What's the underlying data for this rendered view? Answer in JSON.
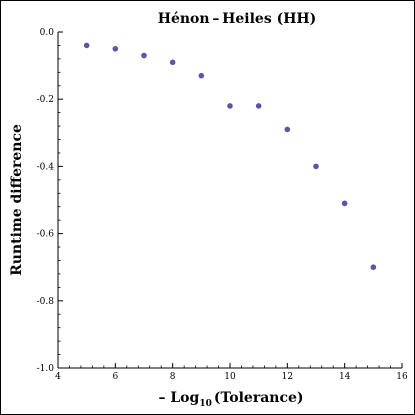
{
  "chart_data": {
    "type": "scatter",
    "title": "Hénon – Heiles (HH)",
    "xlabel_parts": {
      "prefix": "– Log",
      "subscript": "10",
      "suffix": "(Tolerance)"
    },
    "ylabel": "Runtime difference",
    "xlim": [
      4,
      16
    ],
    "ylim": [
      -1.0,
      0.0
    ],
    "x_ticks": [
      4,
      6,
      8,
      10,
      12,
      14,
      16
    ],
    "x_tick_labels": [
      "4",
      "6",
      "8",
      "10",
      "12",
      "14",
      "16"
    ],
    "y_ticks": [
      0.0,
      -0.2,
      -0.4,
      -0.6,
      -0.8,
      -1.0
    ],
    "y_tick_labels": [
      "0.0",
      "-0.2",
      "-0.4",
      "-0.6",
      "-0.8",
      "-1.0"
    ],
    "grid": false,
    "point_color": "#5a55a8",
    "x": [
      5,
      6,
      7,
      8,
      9,
      10,
      11,
      12,
      13,
      14,
      15
    ],
    "y": [
      -0.04,
      -0.05,
      -0.07,
      -0.09,
      -0.13,
      -0.22,
      -0.22,
      -0.29,
      -0.4,
      -0.51,
      -0.7
    ]
  }
}
